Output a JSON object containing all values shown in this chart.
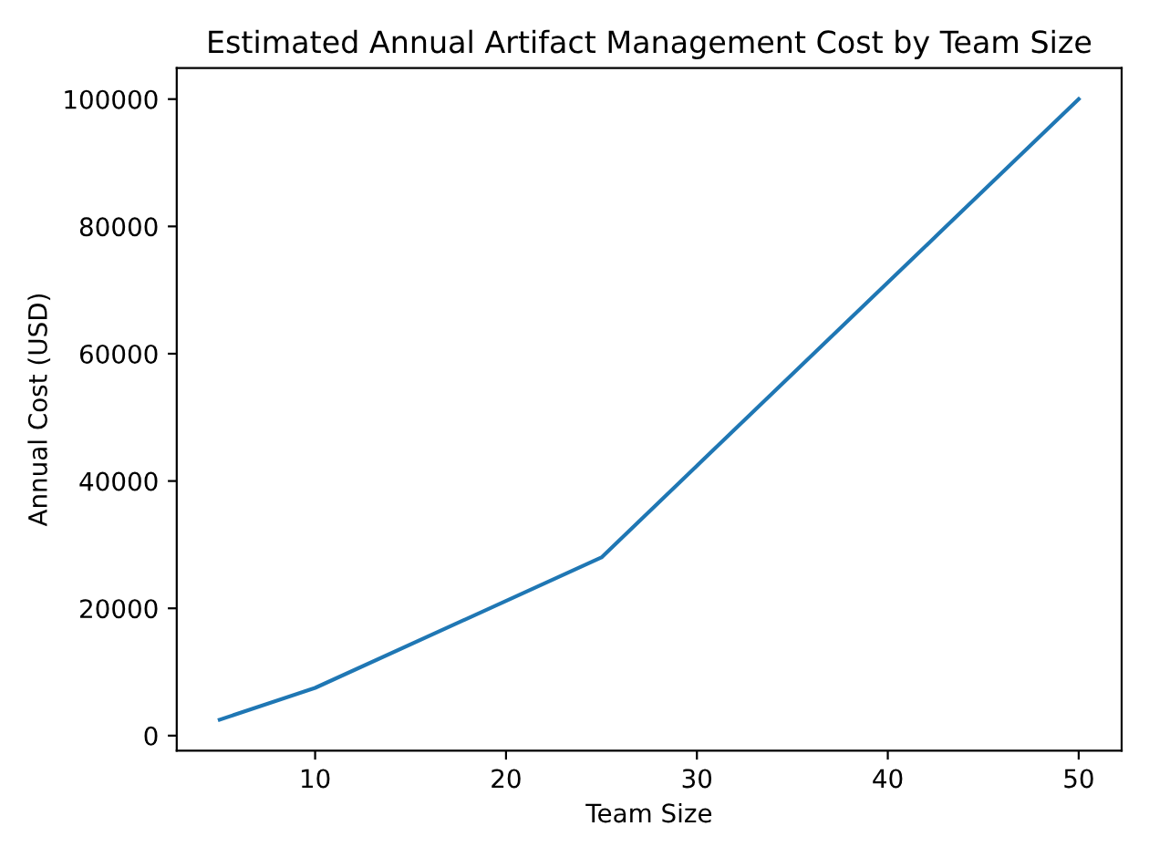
{
  "chart_data": {
    "type": "line",
    "title": "Estimated Annual Artifact Management Cost by Team Size",
    "xlabel": "Team Size",
    "ylabel": "Annual Cost (USD)",
    "x": [
      5,
      10,
      25,
      50
    ],
    "series": [
      {
        "color": "#1f77b4",
        "values": [
          2500,
          7500,
          28000,
          100000
        ]
      }
    ],
    "xlim": [
      2.75,
      52.25
    ],
    "xticks": [
      10,
      20,
      30,
      40,
      50
    ],
    "ylim": [
      -2375,
      104875
    ],
    "yticks": [
      0,
      20000,
      40000,
      60000,
      80000,
      100000
    ],
    "grid": false,
    "legend": false,
    "marker": "none",
    "line_style": "solid"
  }
}
